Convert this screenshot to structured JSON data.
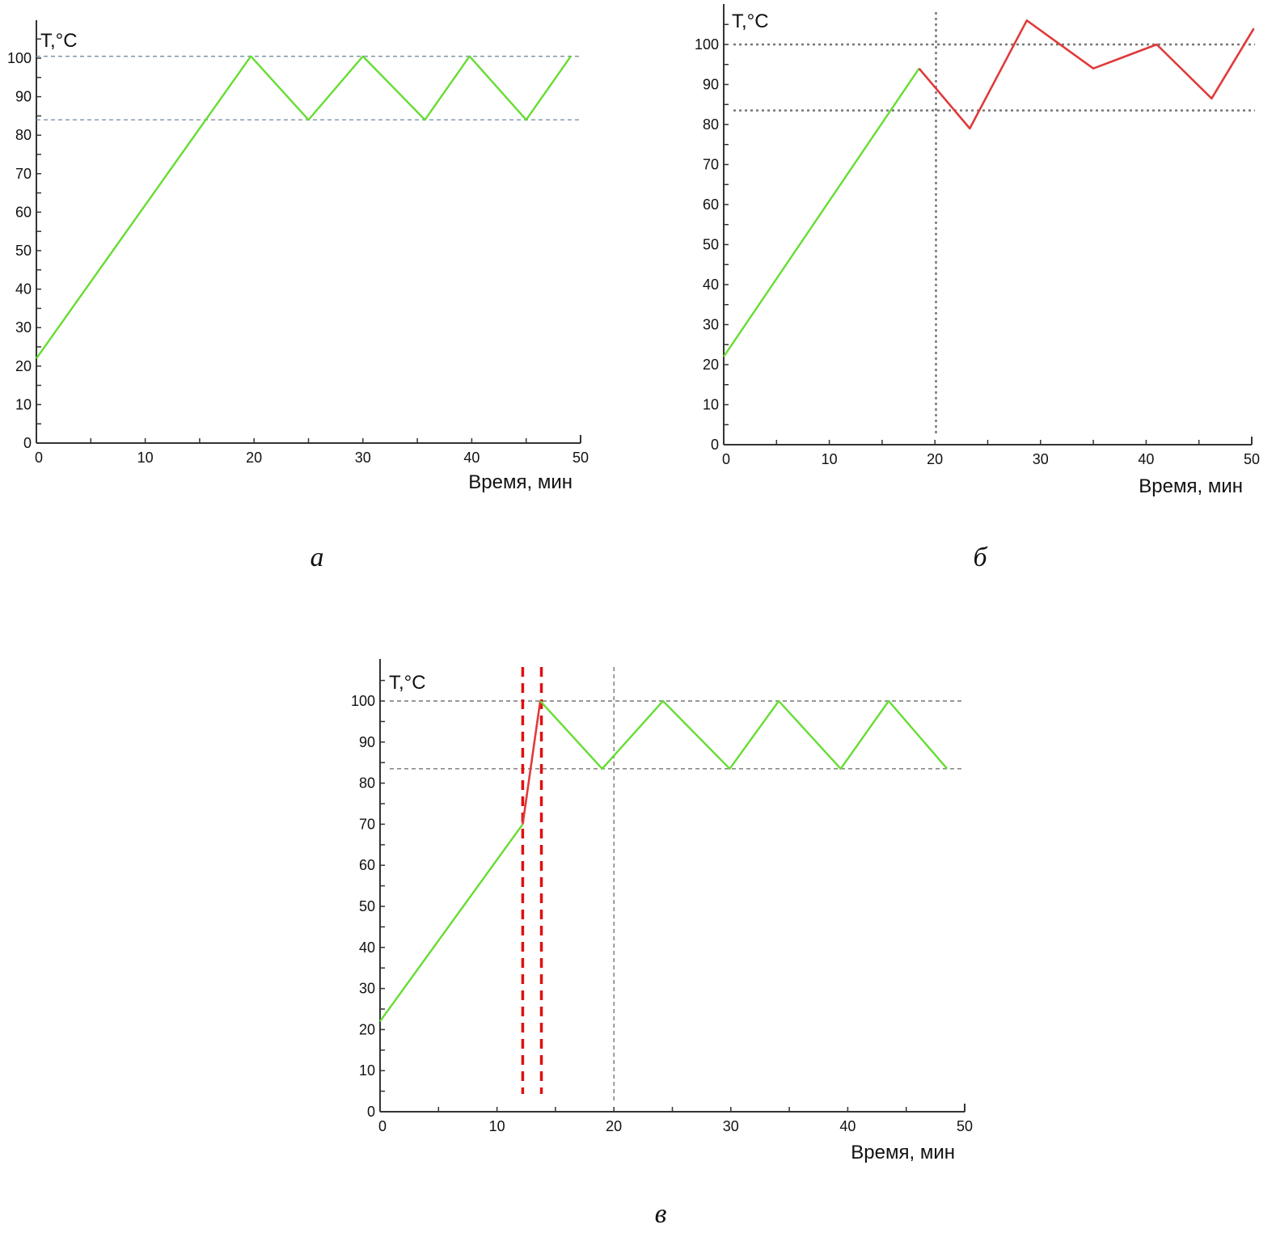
{
  "colors": {
    "heating": "#66dd33",
    "fault": "#e03a3a",
    "axis": "#333333",
    "ref_a": "#7f93a8",
    "ref": "#777777",
    "marker": "#e01010"
  },
  "chart_data": [
    {
      "type": "line",
      "caption": "а",
      "ylabel": "T,°C",
      "xlabel": "Время, мин",
      "xlim": [
        0,
        50
      ],
      "ylim": [
        0,
        100
      ],
      "xticks": [
        0,
        10,
        20,
        30,
        40,
        50
      ],
      "yticks": [
        0,
        10,
        20,
        30,
        40,
        50,
        60,
        70,
        80,
        90,
        100
      ],
      "grid": false,
      "reference_lines": {
        "horizontal": [
          100.5,
          84
        ],
        "vertical": [],
        "style": "dashed"
      },
      "series": [
        {
          "color": "heating",
          "points": [
            [
              0,
              22
            ],
            [
              19.7,
              100.5
            ],
            [
              25,
              84
            ],
            [
              30,
              100.5
            ],
            [
              35.7,
              84
            ],
            [
              39.8,
              100.5
            ],
            [
              45,
              84
            ],
            [
              49.1,
              100.5
            ]
          ]
        }
      ]
    },
    {
      "type": "line",
      "caption": "б",
      "ylabel": "T,°C",
      "xlabel": "Время, мин",
      "xlim": [
        0,
        50
      ],
      "ylim": [
        0,
        100
      ],
      "xticks": [
        0,
        10,
        20,
        30,
        40,
        50
      ],
      "yticks": [
        0,
        10,
        20,
        30,
        40,
        50,
        60,
        70,
        80,
        90,
        100
      ],
      "grid": false,
      "reference_lines": {
        "horizontal": [
          100,
          83.5
        ],
        "vertical": [
          20.1
        ],
        "style": "dotted"
      },
      "series": [
        {
          "color": "heating",
          "points": [
            [
              0,
              22
            ],
            [
              18.5,
              94
            ]
          ]
        },
        {
          "color": "fault",
          "points": [
            [
              18.5,
              94
            ],
            [
              23.3,
              79
            ],
            [
              28.7,
              106
            ],
            [
              35,
              94
            ],
            [
              41,
              100
            ],
            [
              46.2,
              86.5
            ],
            [
              50.2,
              104
            ]
          ]
        }
      ]
    },
    {
      "type": "line",
      "caption": "в",
      "ylabel": "T,°C",
      "xlabel": "Время, мин",
      "xlim": [
        0,
        50
      ],
      "ylim": [
        0,
        100
      ],
      "xticks": [
        0,
        10,
        20,
        30,
        40,
        50
      ],
      "yticks": [
        0,
        10,
        20,
        30,
        40,
        50,
        60,
        70,
        80,
        90,
        100
      ],
      "grid": false,
      "reference_lines": {
        "horizontal": [
          100,
          83.5
        ],
        "vertical": [
          20
        ],
        "style": "dashed"
      },
      "marker_lines": [
        12.2,
        13.8
      ],
      "series": [
        {
          "color": "heating",
          "points": [
            [
              0,
              22
            ],
            [
              12.2,
              70
            ]
          ]
        },
        {
          "color": "fault",
          "points": [
            [
              12.2,
              70
            ],
            [
              13.7,
              100
            ]
          ]
        },
        {
          "color": "heating",
          "points": [
            [
              13.7,
              100
            ],
            [
              19,
              83.5
            ],
            [
              24.2,
              100
            ],
            [
              29.9,
              83.5
            ],
            [
              34.1,
              100
            ],
            [
              39.4,
              83.5
            ],
            [
              43.5,
              100
            ],
            [
              48.5,
              83.5
            ]
          ]
        }
      ]
    }
  ]
}
